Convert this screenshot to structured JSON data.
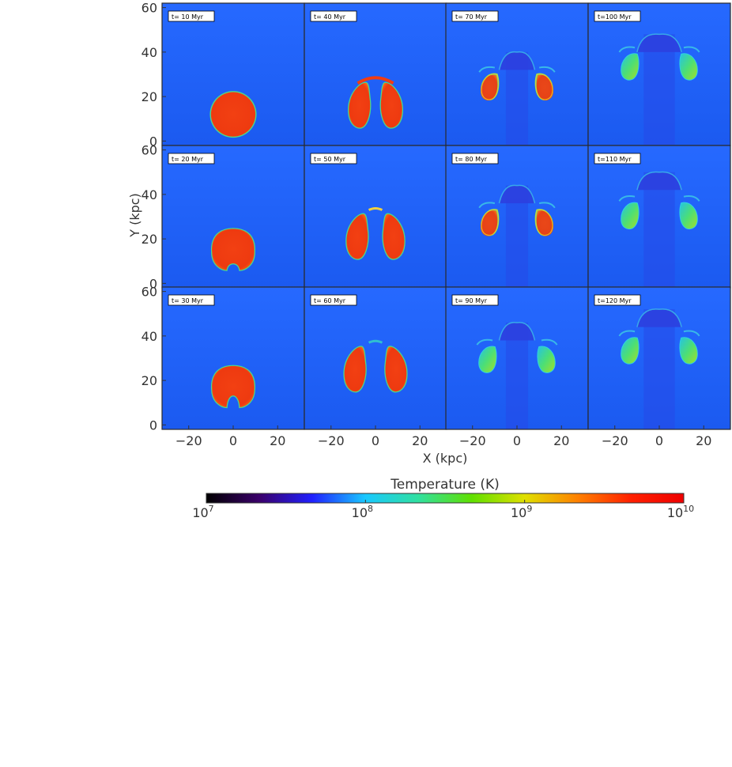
{
  "chart_data": {
    "type": "heatmap",
    "layout": {
      "rows": 3,
      "cols": 4
    },
    "xlabel": "X (kpc)",
    "ylabel": "Y (kpc)",
    "xlim": [
      -32,
      32
    ],
    "ylim": [
      -2,
      62
    ],
    "xticks": [
      -20,
      0,
      20
    ],
    "xtick_labels": [
      "−20",
      "0",
      "20"
    ],
    "yticks": [
      0,
      20,
      40,
      60
    ],
    "ytick_labels": [
      "0",
      "20",
      "40",
      "60"
    ],
    "panels": [
      {
        "label": "t= 10 Myr",
        "time_myr": 10,
        "row": 0,
        "col": 0
      },
      {
        "label": "t= 40 Myr",
        "time_myr": 40,
        "row": 0,
        "col": 1
      },
      {
        "label": "t= 70 Myr",
        "time_myr": 70,
        "row": 0,
        "col": 2
      },
      {
        "label": "t=100 Myr",
        "time_myr": 100,
        "row": 0,
        "col": 3
      },
      {
        "label": "t= 20 Myr",
        "time_myr": 20,
        "row": 1,
        "col": 0
      },
      {
        "label": "t= 50 Myr",
        "time_myr": 50,
        "row": 1,
        "col": 1
      },
      {
        "label": "t= 80 Myr",
        "time_myr": 80,
        "row": 1,
        "col": 2
      },
      {
        "label": "t=110 Myr",
        "time_myr": 110,
        "row": 1,
        "col": 3
      },
      {
        "label": "t= 30 Myr",
        "time_myr": 30,
        "row": 2,
        "col": 0
      },
      {
        "label": "t= 60 Myr",
        "time_myr": 60,
        "row": 2,
        "col": 1
      },
      {
        "label": "t= 90 Myr",
        "time_myr": 90,
        "row": 2,
        "col": 2
      },
      {
        "label": "t=120 Myr",
        "time_myr": 120,
        "row": 2,
        "col": 3
      }
    ],
    "colorbar": {
      "title": "Temperature (K)",
      "scale": "log",
      "range": [
        10000000,
        10000000000
      ],
      "ticks": [
        {
          "value": 10000000,
          "base": "10",
          "exp": "7"
        },
        {
          "value": 100000000,
          "base": "10",
          "exp": "8"
        },
        {
          "value": 1000000000,
          "base": "10",
          "exp": "9"
        },
        {
          "value": 10000000000,
          "base": "10",
          "exp": "10"
        }
      ],
      "colors": [
        "#000000",
        "#3a006a",
        "#2020ff",
        "#19c8ff",
        "#30e0a0",
        "#60e000",
        "#e0e000",
        "#ff8000",
        "#ff2000",
        "#ee0000"
      ]
    },
    "colors": {
      "background_gas": "#1d5ef5",
      "hot_bubble": "#f23c10",
      "warm_shell": "#48e0a0",
      "cool_cap": "#2c40e0"
    }
  }
}
